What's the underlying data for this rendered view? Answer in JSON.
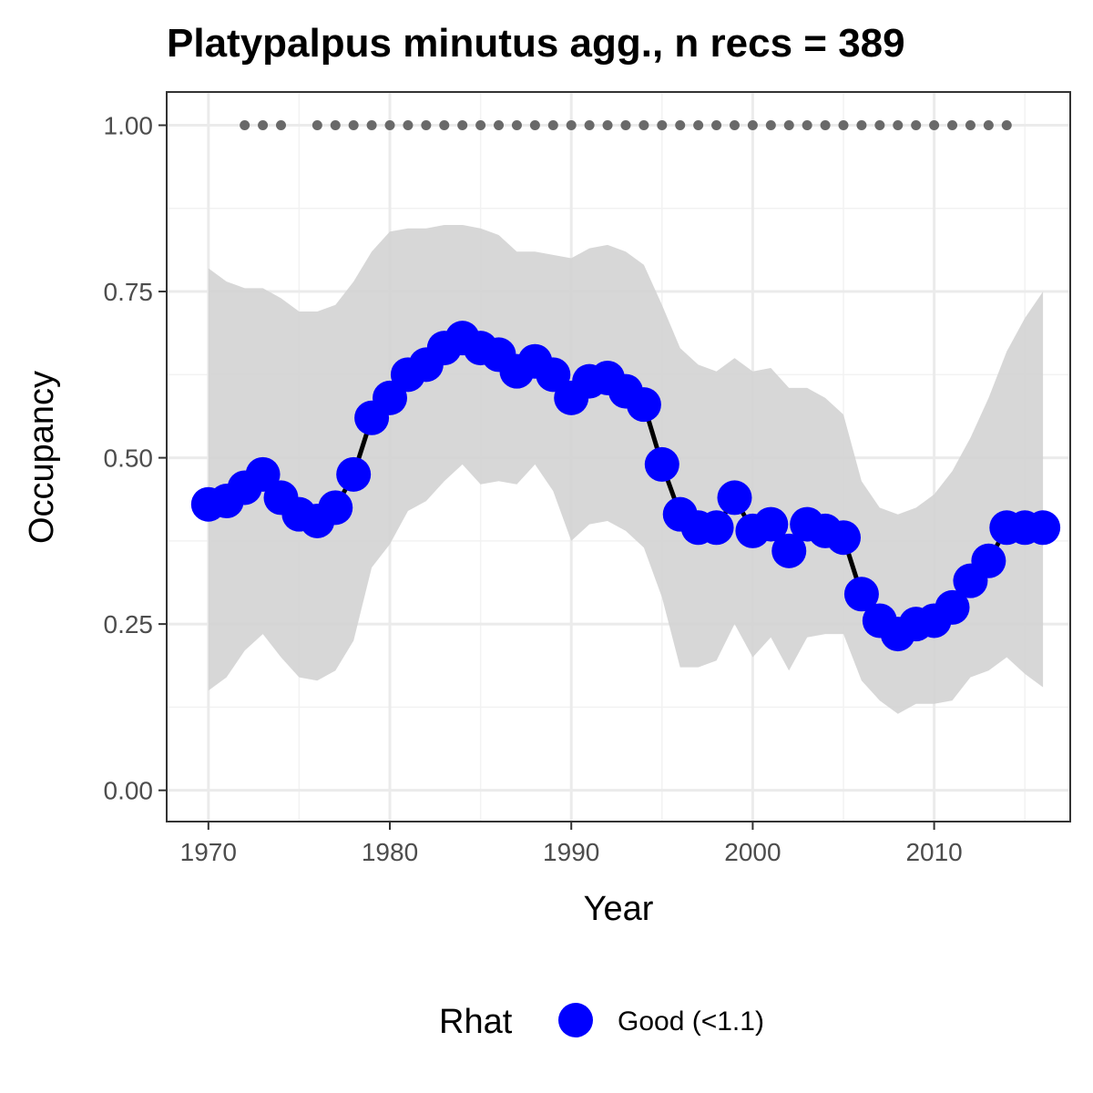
{
  "chart_data": {
    "type": "line",
    "title": "Platypalpus minutus agg., n recs = 389",
    "xlabel": "Year",
    "ylabel": "Occupancy",
    "xlim": [
      1967.7,
      2017.5
    ],
    "ylim": [
      -0.047,
      1.05
    ],
    "x_ticks": [
      1970,
      1980,
      1990,
      2000,
      2010
    ],
    "x_tick_labels": [
      "1970",
      "1980",
      "1990",
      "2000",
      "2010"
    ],
    "y_ticks": [
      0,
      0.25,
      0.5,
      0.75,
      1.0
    ],
    "y_tick_labels": [
      "0.00",
      "0.25",
      "0.50",
      "0.75",
      "1.00"
    ],
    "grid": true,
    "legend": {
      "position": "bottom",
      "title": "Rhat",
      "entries": [
        {
          "label": "Good (<1.1)",
          "color": "#0000ff"
        }
      ]
    },
    "colors": {
      "series": "#0000ff",
      "line": "#000000",
      "ribbon": "#d3d3d3",
      "record_dots": "#696969"
    },
    "series": [
      {
        "x": [
          1970,
          1971,
          1972,
          1973,
          1974,
          1975,
          1976,
          1977,
          1978,
          1979,
          1980,
          1981,
          1982,
          1983,
          1984,
          1985,
          1986,
          1987,
          1988,
          1989,
          1990,
          1991,
          1992,
          1993,
          1994,
          1995,
          1996,
          1997,
          1998,
          1999,
          2000,
          2001,
          2002,
          2003,
          2004,
          2005,
          2006,
          2007,
          2008,
          2009,
          2010,
          2011,
          2012,
          2013,
          2014,
          2015,
          2016
        ],
        "y": [
          0.43,
          0.435,
          0.455,
          0.475,
          0.44,
          0.415,
          0.405,
          0.425,
          0.475,
          0.56,
          0.59,
          0.625,
          0.64,
          0.665,
          0.68,
          0.665,
          0.655,
          0.63,
          0.645,
          0.625,
          0.59,
          0.615,
          0.62,
          0.6,
          0.58,
          0.49,
          0.415,
          0.395,
          0.395,
          0.44,
          0.39,
          0.4,
          0.36,
          0.4,
          0.39,
          0.38,
          0.295,
          0.255,
          0.235,
          0.25,
          0.255,
          0.275,
          0.315,
          0.345,
          0.395,
          0.395,
          0.395
        ],
        "lower": [
          0.15,
          0.17,
          0.21,
          0.235,
          0.2,
          0.17,
          0.165,
          0.18,
          0.225,
          0.335,
          0.37,
          0.42,
          0.435,
          0.465,
          0.49,
          0.46,
          0.465,
          0.46,
          0.49,
          0.45,
          0.375,
          0.4,
          0.405,
          0.39,
          0.365,
          0.29,
          0.185,
          0.185,
          0.195,
          0.25,
          0.2,
          0.23,
          0.18,
          0.23,
          0.235,
          0.235,
          0.165,
          0.135,
          0.115,
          0.13,
          0.13,
          0.135,
          0.17,
          0.18,
          0.2,
          0.175,
          0.155
        ],
        "upper": [
          0.785,
          0.765,
          0.755,
          0.755,
          0.74,
          0.72,
          0.72,
          0.73,
          0.765,
          0.81,
          0.84,
          0.845,
          0.845,
          0.85,
          0.85,
          0.845,
          0.835,
          0.81,
          0.81,
          0.805,
          0.8,
          0.815,
          0.82,
          0.81,
          0.79,
          0.73,
          0.665,
          0.64,
          0.63,
          0.65,
          0.63,
          0.635,
          0.605,
          0.605,
          0.59,
          0.565,
          0.465,
          0.425,
          0.415,
          0.425,
          0.445,
          0.48,
          0.53,
          0.59,
          0.66,
          0.71,
          0.75
        ]
      }
    ],
    "record_years": [
      1972,
      1973,
      1974,
      1976,
      1977,
      1978,
      1979,
      1980,
      1981,
      1982,
      1983,
      1984,
      1985,
      1986,
      1987,
      1988,
      1989,
      1990,
      1991,
      1992,
      1993,
      1994,
      1995,
      1996,
      1997,
      1998,
      1999,
      2000,
      2001,
      2002,
      2003,
      2004,
      2005,
      2006,
      2007,
      2008,
      2009,
      2010,
      2011,
      2012,
      2013,
      2014
    ],
    "record_level": 1.0
  }
}
